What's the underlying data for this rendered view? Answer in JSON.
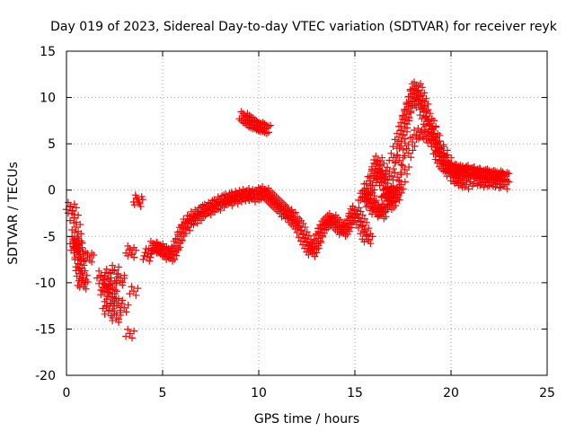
{
  "chart_data": {
    "type": "scatter",
    "title": "Day 019 of 2023, Sidereal Day-to-day VTEC variation (SDTVAR) for receiver reyk",
    "xlabel": "GPS time / hours",
    "ylabel": "SDTVAR / TECUs",
    "xlim": [
      0,
      25
    ],
    "ylim": [
      -20,
      15
    ],
    "xticks": [
      0,
      5,
      10,
      15,
      20,
      25
    ],
    "yticks": [
      -20,
      -15,
      -10,
      -5,
      0,
      5,
      10,
      15
    ],
    "grid": true,
    "marker": "+",
    "marker_color": "#ff0000",
    "series": [
      {
        "name": "SDTVAR",
        "x": [
          0.2,
          0.3,
          0.4,
          0.5,
          0.55,
          0.6,
          0.65,
          0.7,
          0.75,
          0.8,
          0.85,
          0.9,
          0.4,
          0.45,
          0.55,
          0.6,
          0.65,
          0.7,
          1.1,
          1.2,
          1.8,
          1.9,
          2.0,
          2.1,
          2.2,
          2.3,
          2.4,
          2.5,
          2.6,
          2.7,
          2.8,
          2.0,
          2.2,
          2.4,
          2.6,
          2.8,
          3.0,
          2.1,
          2.3,
          2.5,
          3.3,
          3.4,
          3.5,
          3.3,
          3.7,
          3.75,
          4.2,
          4.25,
          4.5,
          4.6,
          4.7,
          4.8,
          4.9,
          5.0,
          5.1,
          5.2,
          5.3,
          5.4,
          5.5,
          5.6,
          5.7,
          5.8,
          5.9,
          6.0,
          6.1,
          6.2,
          6.3,
          6.4,
          6.5,
          6.6,
          6.7,
          6.8,
          6.9,
          7.0,
          7.1,
          7.2,
          7.3,
          7.4,
          7.5,
          7.6,
          7.7,
          7.8,
          7.9,
          8.0,
          8.1,
          8.2,
          8.3,
          8.4,
          8.5,
          8.6,
          8.7,
          8.8,
          8.9,
          9.0,
          9.1,
          9.2,
          9.3,
          9.4,
          9.5,
          9.6,
          9.7,
          9.8,
          9.9,
          10.0,
          10.1,
          10.2,
          10.3,
          10.4,
          10.5,
          10.6,
          10.7,
          10.8,
          10.9,
          11.0,
          11.1,
          11.2,
          11.3,
          11.4,
          11.5,
          11.6,
          11.7,
          11.8,
          11.9,
          12.0,
          12.1,
          12.2,
          12.3,
          12.4,
          12.5,
          12.6,
          12.7,
          12.8,
          12.9,
          13.0,
          13.1,
          13.2,
          13.3,
          13.4,
          13.5,
          13.6,
          13.7,
          13.8,
          13.9,
          14.0,
          14.1,
          14.2,
          14.3,
          14.4,
          14.5,
          14.6,
          14.7,
          14.8,
          14.9,
          15.0,
          15.1,
          15.2,
          15.3,
          15.4,
          15.5,
          15.6,
          15.7,
          15.8,
          15.9,
          16.0,
          16.1,
          16.2,
          16.3,
          16.4,
          16.5,
          16.6,
          16.7,
          16.8,
          16.9,
          17.0,
          17.1,
          17.2,
          17.3,
          17.4,
          17.5,
          17.6,
          17.7,
          17.8,
          17.9,
          18.0,
          18.1,
          18.2,
          18.3,
          18.4,
          18.5,
          18.6,
          18.7,
          18.8,
          18.9,
          19.0,
          19.1,
          19.2,
          19.3,
          19.4,
          19.5,
          19.6,
          19.7,
          19.8,
          19.9,
          20.0,
          20.1,
          20.2,
          20.3,
          20.4,
          20.5,
          20.6,
          20.7,
          20.8,
          20.9,
          21.0,
          21.1,
          21.2,
          21.3,
          21.4,
          21.5,
          21.6,
          21.7,
          21.8,
          21.9,
          22.0,
          22.1,
          22.2,
          22.3,
          22.4,
          22.5,
          22.6,
          22.7,
          22.8,
          9.2,
          9.3,
          9.4,
          9.5,
          9.6,
          9.7,
          9.8,
          9.9,
          10.0,
          10.1,
          10.2,
          10.3,
          10.4,
          15.4,
          15.6,
          15.8,
          16.0,
          16.2,
          16.4,
          16.6,
          16.8,
          17.0,
          17.2,
          17.4,
          17.6,
          17.8,
          18.0,
          18.2,
          18.4,
          18.6,
          18.8,
          19.0,
          19.2,
          19.4,
          19.6,
          19.8,
          20.0,
          20.2,
          20.4,
          17.0,
          17.2,
          17.4,
          17.6,
          17.8,
          18.0,
          18.2,
          18.4,
          18.6,
          18.8,
          19.0,
          19.2,
          19.4,
          19.6,
          19.8,
          20.0,
          20.2,
          20.4,
          20.6,
          20.8,
          21.0,
          21.2,
          21.4,
          21.6,
          21.8,
          22.0,
          22.2,
          22.4,
          22.6,
          22.8,
          16.6,
          16.7,
          16.8,
          16.9,
          17.0,
          17.1,
          16.5,
          16.4,
          16.3,
          16.2,
          16.1,
          16.0,
          15.9,
          15.8,
          15.7,
          15.6,
          15.5
        ],
        "y": [
          -1.8,
          -2.2,
          -3.0,
          -4.0,
          -5.0,
          -6.0,
          -7.0,
          -8.0,
          -9.0,
          -10.0,
          -9.5,
          -10.2,
          -5.5,
          -6.2,
          -5.8,
          -6.5,
          -7.2,
          -8.4,
          -7.1,
          -7.3,
          -9.2,
          -9.8,
          -11.0,
          -12.5,
          -13.1,
          -11.5,
          -10.3,
          -12.0,
          -13.5,
          -12.2,
          -9.8,
          -10.5,
          -9.0,
          -11.2,
          -13.8,
          -9.5,
          -12.7,
          -10.6,
          -10.1,
          -8.6,
          -6.5,
          -6.8,
          -10.9,
          -15.5,
          -1.0,
          -1.3,
          -7.2,
          -6.8,
          -6.0,
          -6.2,
          -6.3,
          -6.1,
          -6.5,
          -6.4,
          -6.6,
          -6.8,
          -6.9,
          -7.2,
          -7.0,
          -6.6,
          -6.0,
          -5.7,
          -5.0,
          -4.5,
          -4.2,
          -3.6,
          -3.9,
          -3.2,
          -3.3,
          -2.8,
          -3.1,
          -2.6,
          -2.8,
          -2.4,
          -2.3,
          -2.1,
          -2.0,
          -2.2,
          -1.8,
          -1.9,
          -1.6,
          -1.5,
          -1.7,
          -1.2,
          -1.4,
          -1.1,
          -1.0,
          -0.9,
          -1.2,
          -0.8,
          -0.7,
          -1.0,
          -0.6,
          -0.8,
          -0.5,
          -0.7,
          -0.4,
          -0.6,
          -0.5,
          -0.3,
          -0.8,
          -0.4,
          -0.6,
          -0.5,
          -0.2,
          -0.3,
          -0.1,
          -0.4,
          -0.6,
          -0.8,
          -1.0,
          -1.2,
          -1.4,
          -1.6,
          -1.8,
          -2.0,
          -2.2,
          -2.6,
          -2.4,
          -2.8,
          -2.7,
          -3.2,
          -3.4,
          -3.6,
          -3.9,
          -4.3,
          -4.8,
          -5.2,
          -5.6,
          -6.0,
          -6.4,
          -6.7,
          -6.3,
          -5.8,
          -5.2,
          -4.6,
          -4.2,
          -3.8,
          -3.6,
          -3.4,
          -3.2,
          -3.0,
          -3.3,
          -3.5,
          -3.8,
          -4.0,
          -4.2,
          -4.5,
          -4.3,
          -4.0,
          -3.6,
          -3.0,
          -2.5,
          -2.2,
          -2.6,
          -3.0,
          -3.4,
          -3.8,
          -4.4,
          -5.0,
          -5.3,
          -1.5,
          0.5,
          1.8,
          2.8,
          3.2,
          2.6,
          1.8,
          0.8,
          -0.4,
          -1.2,
          -1.6,
          -1.4,
          -0.8,
          0.0,
          1.4,
          3.2,
          4.8,
          6.0,
          7.2,
          8.2,
          9.0,
          9.6,
          10.4,
          11.0,
          11.2,
          10.8,
          10.2,
          9.6,
          9.0,
          8.0,
          7.4,
          7.2,
          6.6,
          5.8,
          5.0,
          4.2,
          3.6,
          3.2,
          2.8,
          2.6,
          2.4,
          2.3,
          2.2,
          2.1,
          2.2,
          2.0,
          2.3,
          2.1,
          2.2,
          2.0,
          1.9,
          2.1,
          2.2,
          1.8,
          1.9,
          2.0,
          1.7,
          1.8,
          1.9,
          1.6,
          1.5,
          1.7,
          1.8,
          1.6,
          1.4,
          1.5,
          1.6,
          1.5,
          1.4,
          1.6,
          1.5,
          8.0,
          7.8,
          7.6,
          7.5,
          7.3,
          7.1,
          7.0,
          6.9,
          7.0,
          6.8,
          6.7,
          6.6,
          6.7,
          -0.8,
          0.2,
          1.0,
          1.6,
          1.8,
          1.5,
          1.2,
          2.0,
          3.5,
          5.0,
          6.4,
          7.6,
          8.8,
          9.6,
          9.8,
          9.2,
          8.4,
          7.4,
          6.5,
          5.6,
          4.4,
          3.5,
          2.6,
          1.8,
          1.3,
          1.0,
          -1.2,
          -0.6,
          0.6,
          2.2,
          4.0,
          5.2,
          6.0,
          6.2,
          6.0,
          5.8,
          5.4,
          5.0,
          4.6,
          4.0,
          3.2,
          2.5,
          1.8,
          1.2,
          0.8,
          0.6,
          0.9,
          1.2,
          1.0,
          0.8,
          0.9,
          1.1,
          0.8,
          0.7,
          0.9,
          0.6,
          -0.5,
          -0.3,
          -0.2,
          -0.4,
          -0.1,
          -0.3,
          -2.4,
          -2.6,
          -2.1,
          -1.8,
          -2.3,
          -1.9,
          -1.4,
          -0.9,
          -0.6,
          -0.4,
          -0.8
        ]
      }
    ]
  }
}
